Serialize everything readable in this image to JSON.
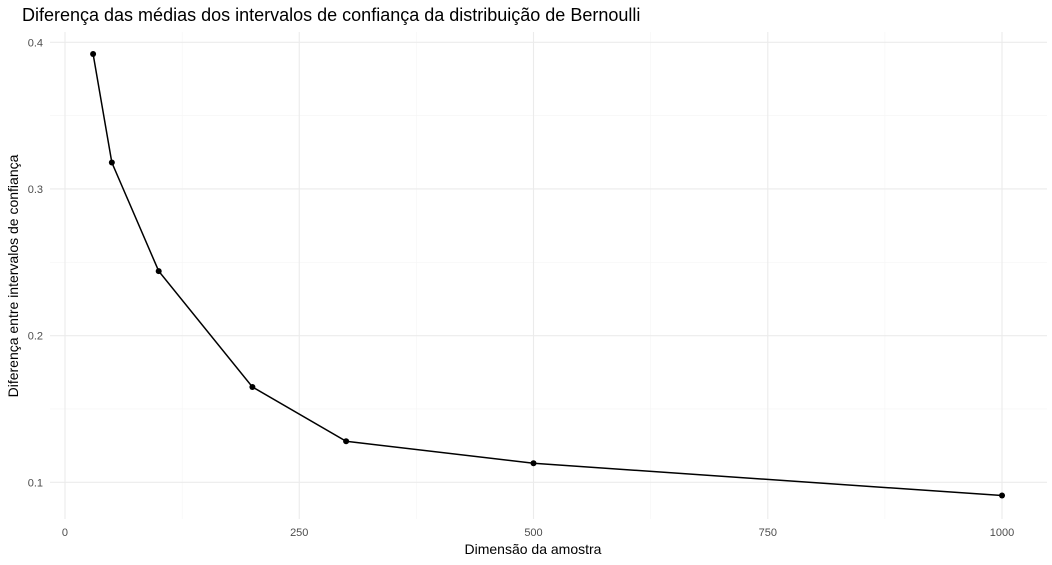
{
  "chart_data": {
    "type": "line",
    "title": "Diferença das médias dos intervalos de confiança da distribuição de Bernoulli",
    "xlabel": "Dimensão da amostra",
    "ylabel": "Diferença entre intervalos de confiança",
    "x": [
      30,
      50,
      100,
      200,
      300,
      500,
      1000
    ],
    "series": [
      {
        "values": [
          0.392,
          0.318,
          0.244,
          0.165,
          0.128,
          0.113,
          0.091
        ]
      }
    ],
    "xlim": [
      -16,
      1048
    ],
    "ylim": [
      0.075,
      0.407
    ],
    "x_ticks": [
      0,
      250,
      500,
      750,
      1000
    ],
    "y_ticks": [
      0.1,
      0.2,
      0.3,
      0.4
    ],
    "x_tick_labels": [
      "0",
      "250",
      "500",
      "750",
      "1000"
    ],
    "y_tick_labels": [
      "0.1",
      "0.2",
      "0.3",
      "0.4"
    ],
    "grid": true,
    "markers": true,
    "line_color": "#000000",
    "legend": "none"
  }
}
